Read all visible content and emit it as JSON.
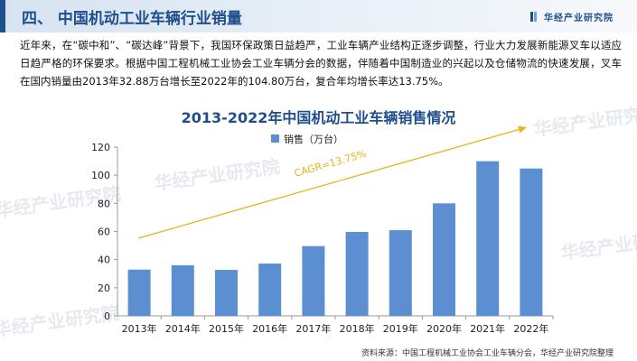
{
  "header": {
    "title": "四、 中国机动工业车辆行业销量",
    "logo_text": "华经产业研究院"
  },
  "intro": {
    "text": "近年来，在“碳中和”、“碳达峰”背景下，我国环保政策日益趋严，工业车辆产业结构正逐步调整，行业大力发展新能源叉车以适应日趋严格的环保要求。根据中国工程机械工业协会工业车辆分会的数据，伴随着中国制造业的兴起以及仓储物流的快速发展，叉车在国内销量由2013年32.88万台增长至2022年的104.80万台，复合年均增长率达13.75%。"
  },
  "watermark": "华经产业研究院",
  "chart_data": {
    "type": "bar",
    "title": "2013-2022年中国机动工业车辆销售情况",
    "categories": [
      "2013年",
      "2014年",
      "2015年",
      "2016年",
      "2017年",
      "2018年",
      "2019年",
      "2020年",
      "2021年",
      "2022年"
    ],
    "series": [
      {
        "name": "销售（万台）",
        "values": [
          32.88,
          36,
          32.7,
          37.2,
          49.6,
          59.7,
          60.9,
          80,
          110,
          104.8
        ]
      }
    ],
    "ylim": [
      0,
      120
    ],
    "yticks": [
      0,
      20,
      40,
      60,
      80,
      100,
      120
    ],
    "grid": false,
    "legend": "top-center",
    "annotation": "CAGR=13.75%",
    "colors": {
      "bar": "#5b8fd2",
      "trend": "#e8b31c",
      "axis": "#999999"
    }
  },
  "source": "资料来源：中国工程机械工业协会工业车辆分会，华经产业研究院整理"
}
